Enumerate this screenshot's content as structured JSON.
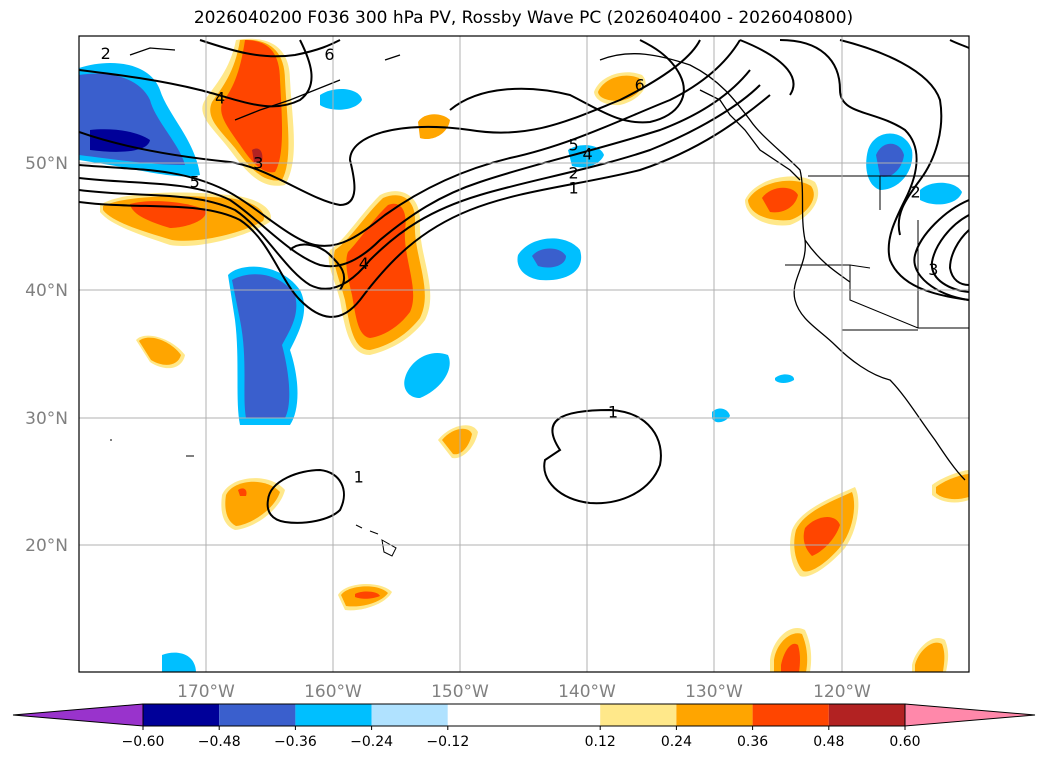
{
  "title": "2026040200 F036 300 hPa PV, Rossby Wave PC (2026040400 - 2026040800)",
  "chart_data": {
    "type": "map",
    "projection": "plate-carree",
    "lon_range": [
      -180,
      -110
    ],
    "lat_range": [
      10,
      60
    ],
    "lat_ticks": [
      {
        "value": 50,
        "label": "50°N"
      },
      {
        "value": 40,
        "label": "40°N"
      },
      {
        "value": 30,
        "label": "30°N"
      },
      {
        "value": 20,
        "label": "20°N"
      }
    ],
    "lon_ticks": [
      {
        "value": -170,
        "label": "170°W"
      },
      {
        "value": -160,
        "label": "160°W"
      },
      {
        "value": -150,
        "label": "150°W"
      },
      {
        "value": -140,
        "label": "140°W"
      },
      {
        "value": -130,
        "label": "130°W"
      },
      {
        "value": -120,
        "label": "120°W"
      }
    ],
    "colorbar": {
      "boundaries": [
        -0.6,
        -0.48,
        -0.36,
        -0.24,
        -0.12,
        0.12,
        0.24,
        0.36,
        0.48,
        0.6
      ],
      "tick_labels": [
        "−0.60",
        "−0.48",
        "−0.36",
        "−0.24",
        "−0.12",
        "0.12",
        "0.24",
        "0.36",
        "0.48",
        "0.60"
      ],
      "colors": [
        "#9933cc",
        "#000099",
        "#3a5fcd",
        "#00bfff",
        "#b0e2ff",
        "#ffffff",
        "#ffe88a",
        "#ffa500",
        "#ff4500",
        "#b22222",
        "#ff88aa"
      ],
      "extend": "both"
    },
    "contour_labels": [
      {
        "text": "2",
        "lon": -177.9,
        "lat": 58.2
      },
      {
        "text": "6",
        "lon": -160.3,
        "lat": 58.1
      },
      {
        "text": "4",
        "lon": -168.9,
        "lat": 54.7
      },
      {
        "text": "3",
        "lon": -165.9,
        "lat": 49.6
      },
      {
        "text": "5",
        "lon": -170.9,
        "lat": 48.1
      },
      {
        "text": "4",
        "lon": -157.6,
        "lat": 41.7
      },
      {
        "text": "6",
        "lon": -135.9,
        "lat": 55.7
      },
      {
        "text": "5",
        "lon": -141.1,
        "lat": 51.0
      },
      {
        "text": "4",
        "lon": -140.0,
        "lat": 50.3
      },
      {
        "text": "2",
        "lon": -141.1,
        "lat": 48.8
      },
      {
        "text": "1",
        "lon": -141.1,
        "lat": 47.6
      },
      {
        "text": "1",
        "lon": -138.0,
        "lat": 30.0
      },
      {
        "text": "1",
        "lon": -158.0,
        "lat": 24.9
      },
      {
        "text": "2",
        "lon": -114.2,
        "lat": 47.3
      },
      {
        "text": "3",
        "lon": -112.8,
        "lat": 41.2
      }
    ]
  }
}
